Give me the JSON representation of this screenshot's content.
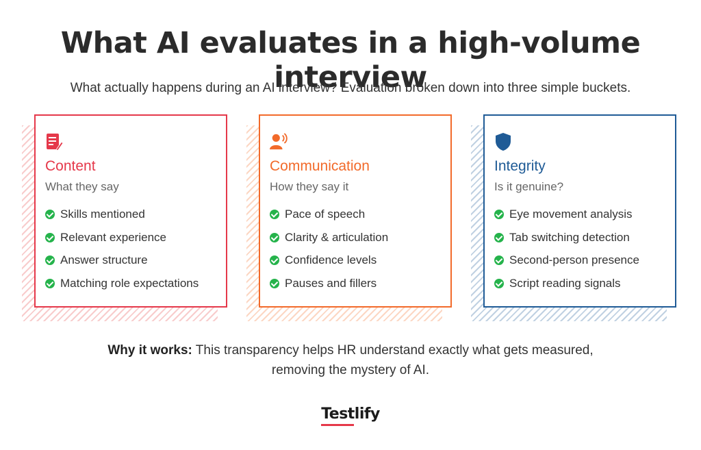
{
  "title": "What AI evaluates in a high-volume interview",
  "subtitle": "What actually happens during an AI interview? Evaluation broken down into three simple buckets.",
  "cards": [
    {
      "title": "Content",
      "subtitle": "What they say",
      "icon": "document-edit-icon",
      "color": "#e5384a",
      "items": [
        "Skills mentioned",
        "Relevant experience",
        "Answer structure",
        "Matching role expectations"
      ]
    },
    {
      "title": "Communication",
      "subtitle": "How they say it",
      "icon": "speaking-person-icon",
      "color": "#f26a2a",
      "items": [
        "Pace of speech",
        "Clarity & articulation",
        "Confidence levels",
        "Pauses and fillers"
      ]
    },
    {
      "title": "Integrity",
      "subtitle": "Is it genuine?",
      "icon": "shield-icon",
      "color": "#1f5b96",
      "items": [
        "Eye movement analysis",
        "Tab switching detection",
        "Second-person presence",
        "Script reading signals"
      ]
    }
  ],
  "footer": {
    "lead": "Why it works:",
    "line1": " This transparency helps HR understand exactly what gets measured,",
    "line2": "removing the mystery of AI."
  },
  "logo": "Testlify"
}
